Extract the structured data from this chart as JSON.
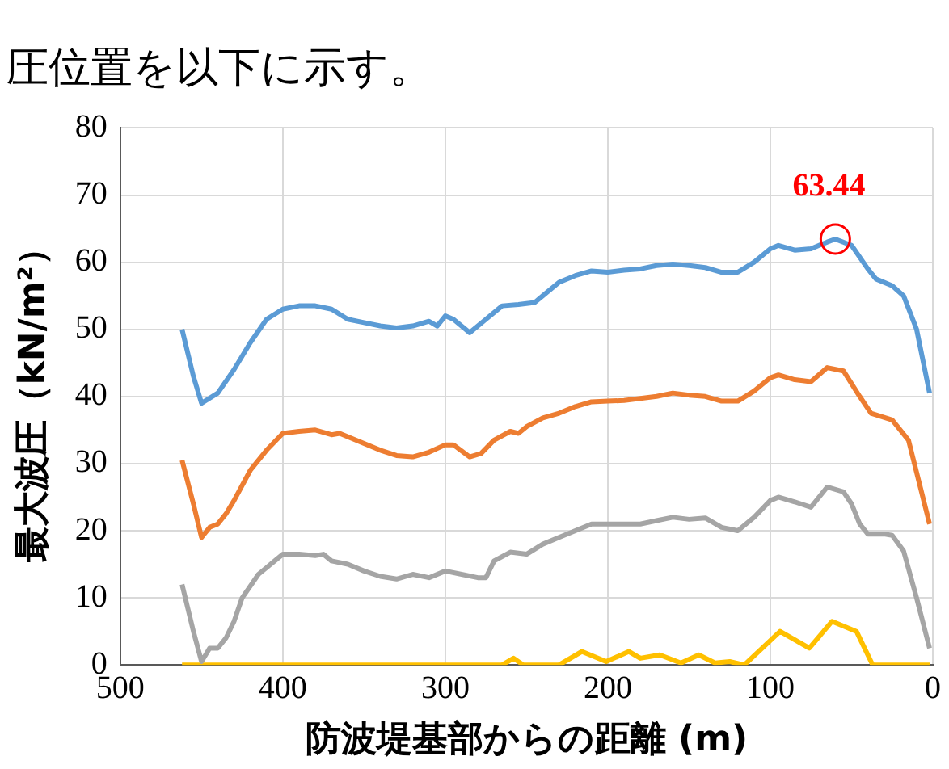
{
  "chart_data": {
    "type": "line",
    "title": "圧位置を以下に示す。",
    "xlabel": "防波堤基部からの距離 (m)",
    "ylabel": "最大波圧（kN/m²）",
    "xlim": [
      500,
      0
    ],
    "xticks": [
      500,
      400,
      300,
      200,
      100,
      0
    ],
    "ylim": [
      0,
      80
    ],
    "yticks": [
      0,
      10,
      20,
      30,
      40,
      50,
      60,
      70,
      80
    ],
    "grid": true,
    "legend": false,
    "marker": "none",
    "line_style": "solid",
    "annotations": [
      {
        "text": "63.44",
        "x": 60,
        "y": 63.44
      }
    ],
    "series": [
      {
        "color": "#5b9bd5",
        "x": [
          462,
          455,
          450,
          440,
          430,
          420,
          410,
          400,
          390,
          380,
          370,
          360,
          350,
          340,
          330,
          320,
          310,
          305,
          300,
          295,
          285,
          275,
          265,
          255,
          245,
          240,
          230,
          220,
          210,
          200,
          190,
          180,
          170,
          160,
          150,
          140,
          130,
          120,
          110,
          100,
          95,
          85,
          75,
          65,
          60,
          50,
          40,
          35,
          25,
          18,
          10,
          2
        ],
        "values": [
          50,
          43,
          39,
          40.5,
          44,
          48,
          51.5,
          53,
          53.5,
          53.5,
          53,
          51.5,
          51,
          50.5,
          50.2,
          50.5,
          51.2,
          50.5,
          52,
          51.5,
          49.5,
          51.5,
          53.5,
          53.7,
          54,
          55,
          57,
          58,
          58.7,
          58.5,
          58.8,
          59,
          59.5,
          59.7,
          59.5,
          59.2,
          58.5,
          58.5,
          60,
          62,
          62.5,
          61.8,
          62,
          63,
          63.44,
          62.5,
          59,
          57.5,
          56.5,
          55,
          50,
          40.5
        ]
      },
      {
        "color": "#ed7d31",
        "x": [
          462,
          455,
          450,
          445,
          440,
          435,
          430,
          420,
          410,
          400,
          390,
          380,
          370,
          365,
          350,
          340,
          330,
          320,
          310,
          300,
          295,
          285,
          278,
          270,
          260,
          255,
          250,
          240,
          230,
          220,
          210,
          200,
          190,
          180,
          170,
          160,
          150,
          140,
          130,
          120,
          110,
          100,
          95,
          85,
          75,
          65,
          55,
          45,
          38,
          25,
          15,
          2
        ],
        "values": [
          30.5,
          24,
          19,
          20.5,
          21,
          22.5,
          24.5,
          29,
          32,
          34.5,
          34.8,
          35,
          34.3,
          34.5,
          33,
          32,
          31.2,
          31,
          31.7,
          32.8,
          32.8,
          31,
          31.5,
          33.5,
          34.8,
          34.5,
          35.5,
          36.8,
          37.5,
          38.5,
          39.2,
          39.3,
          39.4,
          39.7,
          40,
          40.5,
          40.2,
          40,
          39.3,
          39.3,
          40.8,
          42.8,
          43.2,
          42.5,
          42.2,
          44.3,
          43.8,
          40,
          37.5,
          36.5,
          33.5,
          21
        ]
      },
      {
        "color": "#a5a5a5",
        "x": [
          462,
          455,
          450,
          445,
          440,
          435,
          430,
          425,
          415,
          410,
          405,
          400,
          390,
          380,
          375,
          370,
          360,
          350,
          340,
          330,
          320,
          310,
          300,
          290,
          280,
          275,
          270,
          260,
          250,
          240,
          230,
          220,
          210,
          200,
          190,
          180,
          170,
          160,
          150,
          140,
          130,
          120,
          110,
          100,
          95,
          85,
          75,
          65,
          55,
          50,
          45,
          40,
          30,
          25,
          18,
          10,
          2
        ],
        "values": [
          12,
          5,
          0.5,
          2.5,
          2.5,
          4,
          6.5,
          10,
          13.5,
          14.5,
          15.5,
          16.5,
          16.5,
          16.3,
          16.5,
          15.5,
          15,
          14,
          13.2,
          12.8,
          13.5,
          13,
          14,
          13.5,
          13,
          13,
          15.5,
          16.8,
          16.5,
          18,
          19,
          20,
          21,
          21,
          21,
          21,
          21.5,
          22,
          21.7,
          21.9,
          20.5,
          20,
          22,
          24.5,
          25,
          24.3,
          23.5,
          26.5,
          25.8,
          24,
          21,
          19.5,
          19.5,
          19.3,
          17,
          10,
          2.5
        ]
      },
      {
        "color": "#ffc000",
        "x": [
          462,
          265,
          258,
          252,
          230,
          216,
          201,
          187,
          180,
          168,
          155,
          144,
          134,
          125,
          116,
          94,
          76,
          62,
          47,
          37,
          2
        ],
        "values": [
          0,
          0,
          1,
          0,
          0,
          2,
          0.5,
          2,
          1,
          1.5,
          0.3,
          1.5,
          0.3,
          0.5,
          0,
          5,
          2.5,
          6.5,
          5,
          0,
          0
        ]
      }
    ]
  }
}
